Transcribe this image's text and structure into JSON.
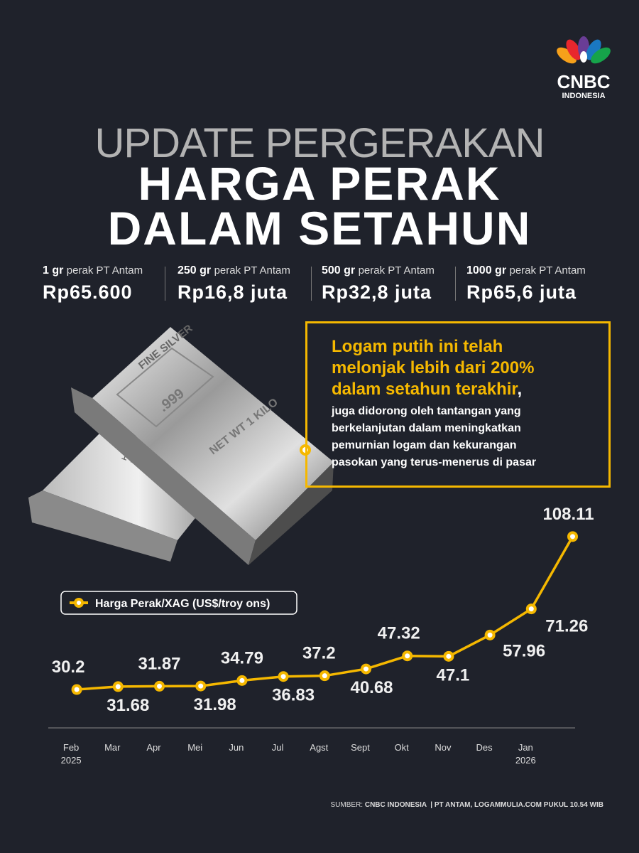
{
  "logo": {
    "name": "CNBC",
    "region": "INDONESIA"
  },
  "header": {
    "kicker": "UPDATE PERGERAKAN",
    "title_lines": [
      "HARGA PERAK",
      "DALAM SETAHUN"
    ]
  },
  "prices": [
    {
      "weight": "1 gr",
      "product": "perak PT Antam",
      "price": "Rp65.600"
    },
    {
      "weight": "250 gr",
      "product": "perak PT Antam",
      "price": "Rp16,8 juta"
    },
    {
      "weight": "500 gr",
      "product": "perak PT Antam",
      "price": "Rp32,8 juta"
    },
    {
      "weight": "1000 gr",
      "product": "perak PT Antam",
      "price": "Rp65,6 juta"
    }
  ],
  "callout": {
    "highlight_lines": [
      "Logam putih ini telah",
      "melonjak lebih dari 200%",
      "dalam setahun terakhir"
    ],
    "highlight_end": ",",
    "body_lines": [
      "juga didorong oleh tantangan yang",
      "berkelanjutan dalam meningkatkan",
      "pemurnian logam dan kekurangan",
      "pasokan yang terus-menerus di pasar"
    ]
  },
  "bar_texts": {
    "top_stamp": "FINE\nSILVER",
    "purity": ".999",
    "weight_stamp": "NET WT\n1 KILO",
    "back_stamp": "1 KILO"
  },
  "chart_data": {
    "type": "line",
    "categories": [
      "Feb\n2025",
      "Mar",
      "Apr",
      "Mei",
      "Jun",
      "Jul",
      "Agst",
      "Sept",
      "Okt",
      "Nov",
      "Des",
      "Jan\n2026",
      null
    ],
    "series": [
      {
        "name": "Harga Perak/XAG (US$/troy ons)",
        "color": "#f5b800",
        "values": [
          30.2,
          31.68,
          31.87,
          31.98,
          34.79,
          36.83,
          37.2,
          40.68,
          47.32,
          47.1,
          57.96,
          71.26,
          108.11
        ]
      }
    ],
    "ylim": [
      10,
      115
    ]
  },
  "source": {
    "label": "SUMBER:",
    "text": "CNBC INDONESIA  | PT ANTAM, LOGAMMULIA.COM PUKUL 10.54 WIB"
  }
}
